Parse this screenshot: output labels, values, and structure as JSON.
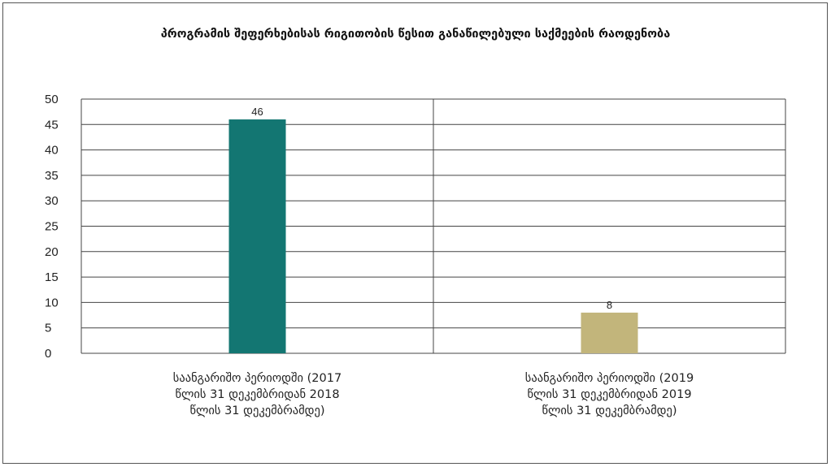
{
  "chart_data": {
    "type": "bar",
    "title": "პროგრამის შეფერხებისას რიგითობის წესით განაწილებული საქმეების რაოდენობა",
    "categories": [
      "საანგარიშო პერიოდში (2017 წლის 31 დეკემბრიდან 2018 წლის 31 დეკემბრამდე)",
      "საანგარიშო პერიოდში (2019 წლის 31 დეკემბრიდან 2019 წლის 31 დეკემბრამდე)"
    ],
    "category_lines": [
      [
        "საანგარიშო პერიოდში (2017",
        "წლის 31 დეკემბრიდან 2018",
        "წლის 31 დეკემბრამდე)"
      ],
      [
        "საანგარიშო პერიოდში (2019",
        "წლის 31 დეკემბრიდან 2019",
        "წლის 31 დეკემბრამდე)"
      ]
    ],
    "values": [
      46,
      8
    ],
    "data_labels": [
      "46",
      "8"
    ],
    "colors": [
      "#137672",
      "#c2b57b"
    ],
    "ylim": [
      0,
      50
    ],
    "yticks": [
      "0",
      "5",
      "10",
      "15",
      "20",
      "25",
      "30",
      "35",
      "40",
      "45",
      "50"
    ],
    "xlabel": "",
    "ylabel": "",
    "grid": true,
    "legend": "none"
  }
}
